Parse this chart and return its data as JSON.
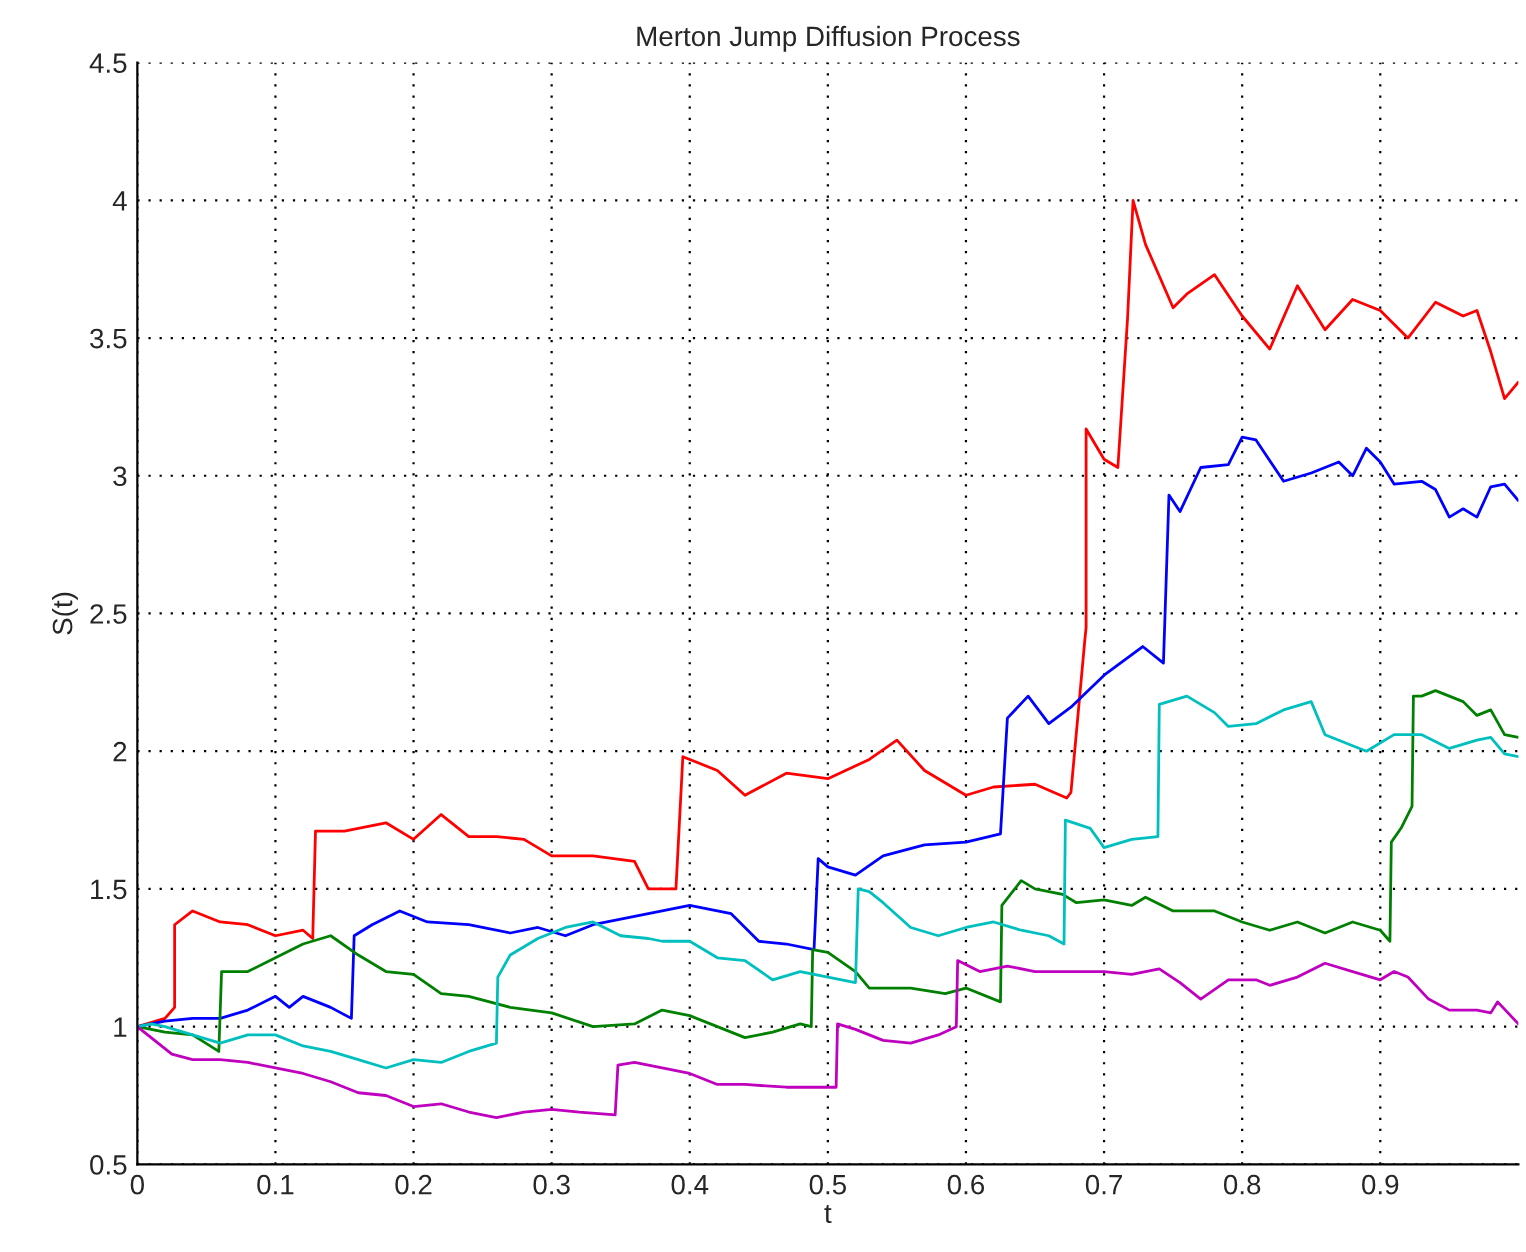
{
  "chart_data": {
    "type": "line",
    "title": "Merton Jump Diffusion Process",
    "xlabel": "t",
    "ylabel": "S(t)",
    "xlim": [
      0,
      1
    ],
    "ylim": [
      0.5,
      4.5
    ],
    "xticks": [
      0,
      0.1,
      0.2,
      0.3,
      0.4,
      0.5,
      0.6,
      0.7,
      0.8,
      0.9
    ],
    "yticks": [
      0.5,
      1,
      1.5,
      2,
      2.5,
      3,
      3.5,
      4,
      4.5
    ],
    "grid": true,
    "line_style": "solid",
    "marker": "none",
    "series": [
      {
        "color": "#ff0000",
        "x": [
          0,
          0.02,
          0.027,
          0.027,
          0.04,
          0.06,
          0.08,
          0.1,
          0.12,
          0.127,
          0.129,
          0.15,
          0.18,
          0.2,
          0.22,
          0.24,
          0.26,
          0.28,
          0.3,
          0.33,
          0.36,
          0.37,
          0.39,
          0.395,
          0.42,
          0.44,
          0.47,
          0.5,
          0.53,
          0.55,
          0.57,
          0.6,
          0.62,
          0.65,
          0.673,
          0.676,
          0.686,
          0.687,
          0.687,
          0.7,
          0.71,
          0.717,
          0.721,
          0.73,
          0.75,
          0.76,
          0.78,
          0.8,
          0.82,
          0.84,
          0.86,
          0.88,
          0.9,
          0.91,
          0.92,
          0.94,
          0.96,
          0.97,
          0.98,
          0.99,
          1.0
        ],
        "values": [
          1,
          1.03,
          1.07,
          1.37,
          1.42,
          1.38,
          1.37,
          1.33,
          1.35,
          1.32,
          1.71,
          1.71,
          1.74,
          1.68,
          1.77,
          1.69,
          1.69,
          1.68,
          1.62,
          1.62,
          1.6,
          1.5,
          1.5,
          1.98,
          1.93,
          1.84,
          1.92,
          1.9,
          1.97,
          2.04,
          1.93,
          1.84,
          1.87,
          1.88,
          1.83,
          1.85,
          2.4,
          2.45,
          3.17,
          3.06,
          3.03,
          3.57,
          4.0,
          3.84,
          3.61,
          3.66,
          3.73,
          3.58,
          3.46,
          3.69,
          3.53,
          3.64,
          3.6,
          3.55,
          3.5,
          3.63,
          3.58,
          3.6,
          3.45,
          3.28,
          3.34
        ]
      },
      {
        "color": "#0000ff",
        "x": [
          0,
          0.02,
          0.04,
          0.06,
          0.08,
          0.1,
          0.11,
          0.12,
          0.14,
          0.155,
          0.157,
          0.17,
          0.19,
          0.21,
          0.24,
          0.27,
          0.29,
          0.31,
          0.33,
          0.36,
          0.4,
          0.43,
          0.45,
          0.47,
          0.49,
          0.493,
          0.5,
          0.52,
          0.54,
          0.57,
          0.6,
          0.625,
          0.63,
          0.645,
          0.66,
          0.676,
          0.701,
          0.728,
          0.743,
          0.747,
          0.755,
          0.77,
          0.79,
          0.8,
          0.81,
          0.83,
          0.85,
          0.87,
          0.88,
          0.89,
          0.9,
          0.91,
          0.93,
          0.94,
          0.95,
          0.96,
          0.97,
          0.98,
          0.99,
          1.0
        ],
        "values": [
          1,
          1.02,
          1.03,
          1.03,
          1.06,
          1.11,
          1.07,
          1.11,
          1.07,
          1.03,
          1.33,
          1.37,
          1.42,
          1.38,
          1.37,
          1.34,
          1.36,
          1.33,
          1.37,
          1.4,
          1.44,
          1.41,
          1.31,
          1.3,
          1.28,
          1.61,
          1.58,
          1.55,
          1.62,
          1.66,
          1.67,
          1.7,
          2.12,
          2.2,
          2.1,
          2.16,
          2.28,
          2.38,
          2.32,
          2.93,
          2.87,
          3.03,
          3.04,
          3.14,
          3.13,
          2.98,
          3.01,
          3.05,
          3.0,
          3.1,
          3.05,
          2.97,
          2.98,
          2.95,
          2.85,
          2.88,
          2.85,
          2.96,
          2.97,
          2.91
        ]
      },
      {
        "color": "#008000",
        "x": [
          0,
          0.02,
          0.04,
          0.059,
          0.061,
          0.08,
          0.1,
          0.12,
          0.14,
          0.16,
          0.18,
          0.2,
          0.22,
          0.24,
          0.27,
          0.3,
          0.33,
          0.36,
          0.38,
          0.4,
          0.42,
          0.44,
          0.46,
          0.48,
          0.488,
          0.489,
          0.5,
          0.52,
          0.53,
          0.56,
          0.585,
          0.6,
          0.625,
          0.626,
          0.64,
          0.65,
          0.67,
          0.68,
          0.7,
          0.72,
          0.73,
          0.75,
          0.78,
          0.8,
          0.82,
          0.84,
          0.86,
          0.88,
          0.9,
          0.907,
          0.908,
          0.915,
          0.923,
          0.924,
          0.93,
          0.94,
          0.96,
          0.97,
          0.98,
          0.99,
          1.0
        ],
        "values": [
          1,
          0.98,
          0.97,
          0.91,
          1.2,
          1.2,
          1.25,
          1.3,
          1.33,
          1.26,
          1.2,
          1.19,
          1.12,
          1.11,
          1.07,
          1.05,
          1.0,
          1.01,
          1.06,
          1.04,
          1.0,
          0.96,
          0.98,
          1.01,
          1.0,
          1.28,
          1.27,
          1.2,
          1.14,
          1.14,
          1.12,
          1.14,
          1.09,
          1.44,
          1.53,
          1.5,
          1.48,
          1.45,
          1.46,
          1.44,
          1.47,
          1.42,
          1.42,
          1.38,
          1.35,
          1.38,
          1.34,
          1.38,
          1.35,
          1.31,
          1.67,
          1.72,
          1.8,
          2.2,
          2.2,
          2.22,
          2.18,
          2.13,
          2.15,
          2.06,
          2.05
        ]
      },
      {
        "color": "#00bfbf",
        "x": [
          0,
          0.01,
          0.02,
          0.04,
          0.06,
          0.08,
          0.1,
          0.12,
          0.14,
          0.16,
          0.18,
          0.2,
          0.22,
          0.24,
          0.26,
          0.261,
          0.27,
          0.29,
          0.31,
          0.33,
          0.35,
          0.37,
          0.38,
          0.4,
          0.42,
          0.44,
          0.46,
          0.48,
          0.52,
          0.522,
          0.53,
          0.54,
          0.56,
          0.58,
          0.6,
          0.62,
          0.64,
          0.66,
          0.671,
          0.672,
          0.69,
          0.7,
          0.72,
          0.739,
          0.74,
          0.76,
          0.78,
          0.79,
          0.81,
          0.83,
          0.85,
          0.86,
          0.88,
          0.89,
          0.91,
          0.93,
          0.95,
          0.97,
          0.98,
          0.99,
          1.0
        ],
        "values": [
          1,
          1.01,
          1.0,
          0.97,
          0.94,
          0.97,
          0.97,
          0.93,
          0.91,
          0.88,
          0.85,
          0.88,
          0.87,
          0.91,
          0.94,
          1.18,
          1.26,
          1.32,
          1.36,
          1.38,
          1.33,
          1.32,
          1.31,
          1.31,
          1.25,
          1.24,
          1.17,
          1.2,
          1.16,
          1.5,
          1.49,
          1.45,
          1.36,
          1.33,
          1.36,
          1.38,
          1.35,
          1.33,
          1.3,
          1.75,
          1.72,
          1.65,
          1.68,
          1.69,
          2.17,
          2.2,
          2.14,
          2.09,
          2.1,
          2.15,
          2.18,
          2.06,
          2.02,
          2.0,
          2.06,
          2.06,
          2.01,
          2.04,
          2.05,
          1.99,
          1.98
        ]
      },
      {
        "color": "#bf00bf",
        "x": [
          0,
          0.025,
          0.04,
          0.06,
          0.08,
          0.1,
          0.12,
          0.14,
          0.16,
          0.18,
          0.2,
          0.22,
          0.24,
          0.26,
          0.28,
          0.3,
          0.32,
          0.346,
          0.348,
          0.36,
          0.38,
          0.4,
          0.42,
          0.44,
          0.47,
          0.506,
          0.507,
          0.52,
          0.54,
          0.56,
          0.58,
          0.593,
          0.594,
          0.61,
          0.63,
          0.65,
          0.67,
          0.7,
          0.72,
          0.74,
          0.755,
          0.77,
          0.79,
          0.81,
          0.82,
          0.84,
          0.86,
          0.88,
          0.9,
          0.91,
          0.92,
          0.935,
          0.95,
          0.97,
          0.98,
          0.985,
          1.0
        ],
        "values": [
          1,
          0.9,
          0.88,
          0.88,
          0.87,
          0.85,
          0.83,
          0.8,
          0.76,
          0.75,
          0.71,
          0.72,
          0.69,
          0.67,
          0.69,
          0.7,
          0.69,
          0.68,
          0.86,
          0.87,
          0.85,
          0.83,
          0.79,
          0.79,
          0.78,
          0.78,
          1.01,
          0.99,
          0.95,
          0.94,
          0.97,
          1.0,
          1.24,
          1.2,
          1.22,
          1.2,
          1.2,
          1.2,
          1.19,
          1.21,
          1.16,
          1.1,
          1.17,
          1.17,
          1.15,
          1.18,
          1.23,
          1.2,
          1.17,
          1.2,
          1.18,
          1.1,
          1.06,
          1.06,
          1.05,
          1.09,
          1.01
        ]
      }
    ]
  }
}
